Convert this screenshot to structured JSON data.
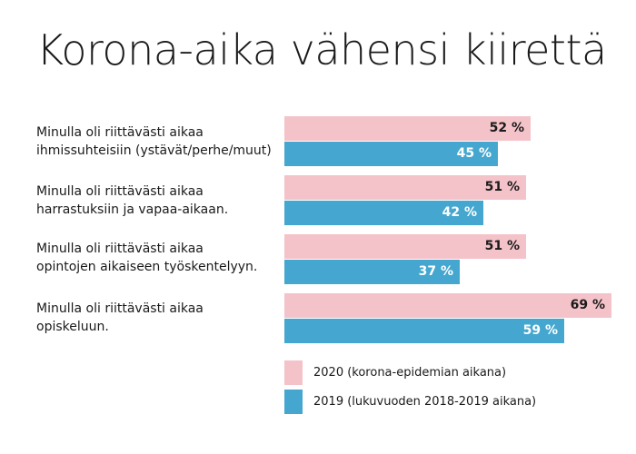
{
  "chart_data": {
    "type": "bar",
    "orientation": "horizontal",
    "title": "Korona-aika vähensi kiirettä",
    "categories": [
      [
        "Minulla oli riittävästi aikaa",
        "ihmissuhteisiin (ystävät/perhe/muut)"
      ],
      [
        "Minulla oli riittävästi aikaa",
        "harrastuksiin ja vapaa-aikaan."
      ],
      [
        "Minulla oli riittävästi aikaa",
        "opintojen aikaiseen työskentelyyn."
      ],
      [
        "Minulla oli riittävästi aikaa",
        "opiskeluun."
      ]
    ],
    "series": [
      {
        "name": "2020 (korona-epidemian aikana)",
        "values": [
          52,
          51,
          51,
          69
        ],
        "labels": [
          "52 %",
          "51 %",
          "51 %",
          "69 %"
        ],
        "color": "#f4c3c9",
        "label_color": "#1a1a1a"
      },
      {
        "name": "2019 (lukuvuoden 2018-2019 aikana)",
        "values": [
          45,
          42,
          37,
          59
        ],
        "labels": [
          "45 %",
          "42 %",
          "37 %",
          "59 %"
        ],
        "color": "#45a7cf",
        "label_color": "#ffffff"
      }
    ],
    "xlim": [
      0,
      100
    ],
    "grid": false,
    "legend": "bottom-right"
  }
}
